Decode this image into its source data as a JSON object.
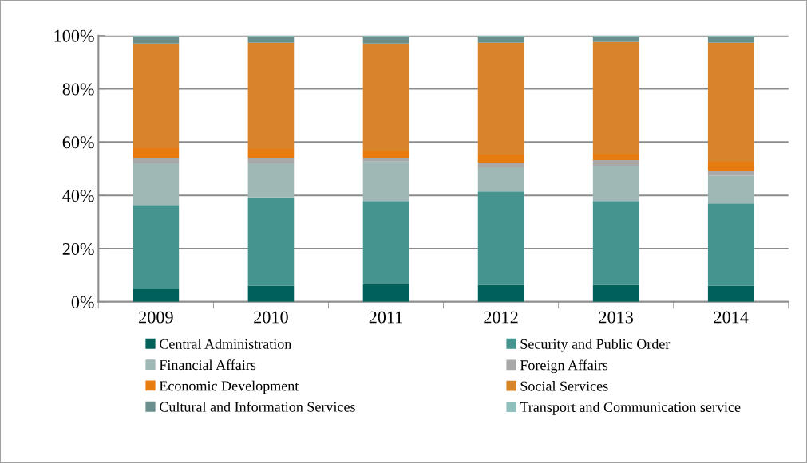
{
  "chart_data": {
    "type": "bar",
    "stacked": true,
    "categories": [
      "2009",
      "2010",
      "2011",
      "2012",
      "2013",
      "2014"
    ],
    "series": [
      {
        "name": "Central Administration",
        "color": "#00605a",
        "values": [
          4.7,
          6.1,
          6.7,
          6.4,
          6.4,
          6.1
        ]
      },
      {
        "name": "Security and Public Order",
        "color": "#45948f",
        "values": [
          31.7,
          33.1,
          31.2,
          35.1,
          31.5,
          30.9
        ]
      },
      {
        "name": "Financial Affairs",
        "color": "#a0b8b5",
        "values": [
          15.6,
          12.8,
          14.8,
          9.0,
          13.2,
          10.5
        ]
      },
      {
        "name": "Foreign Affairs",
        "color": "#a8a8a8",
        "values": [
          2.1,
          2.1,
          1.4,
          1.8,
          2.1,
          1.8
        ]
      },
      {
        "name": "Economic Development",
        "color": "#e87b10",
        "values": [
          3.6,
          3.3,
          2.7,
          3.0,
          2.4,
          3.3
        ]
      },
      {
        "name": "Social Services",
        "color": "#d8842a",
        "values": [
          39.3,
          39.9,
          40.2,
          42.0,
          42.0,
          44.7
        ]
      },
      {
        "name": "Cultural and Information Services",
        "color": "#6a8f8c",
        "values": [
          2.3,
          2.0,
          2.3,
          2.0,
          1.7,
          2.0
        ]
      },
      {
        "name": "Transport and Communication service",
        "color": "#8fc0bd",
        "values": [
          0.7,
          0.7,
          0.7,
          0.7,
          0.7,
          0.7
        ]
      }
    ],
    "ylim": [
      0,
      100
    ],
    "yticks": [
      {
        "value": 0,
        "label": "0%"
      },
      {
        "value": 20,
        "label": "20%"
      },
      {
        "value": 40,
        "label": "40%"
      },
      {
        "value": 60,
        "label": "60%"
      },
      {
        "value": 80,
        "label": "80%"
      },
      {
        "value": 100,
        "label": "100%"
      }
    ],
    "grid": "y",
    "legend": "bottom"
  }
}
